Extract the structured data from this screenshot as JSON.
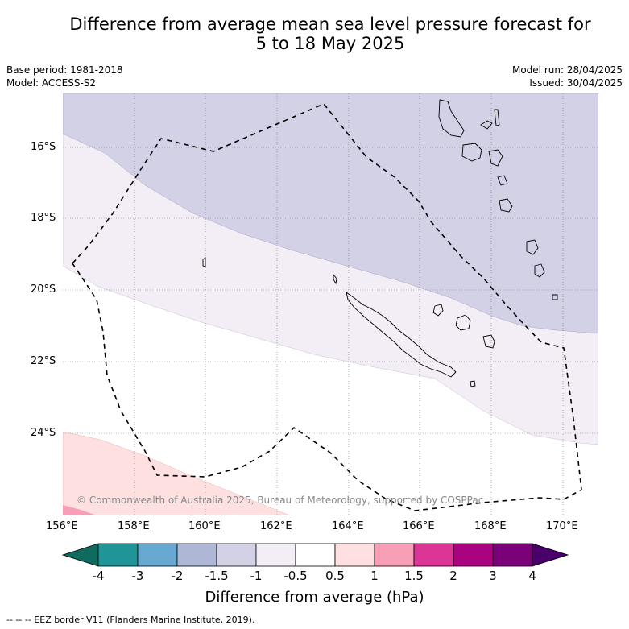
{
  "title_line1": "Difference from average mean sea level pressure forecast for",
  "title_line2": "5 to 18 May 2025",
  "meta_left": [
    "Base period: 1981-2018",
    "Model: ACCESS-S2"
  ],
  "meta_right": [
    "Model run: 28/04/2025",
    "Issued: 30/04/2025"
  ],
  "lat_labels": [
    "16°S",
    "18°S",
    "20°S",
    "22°S",
    "24°S"
  ],
  "lon_labels": [
    "156°E",
    "158°E",
    "160°E",
    "162°E",
    "164°E",
    "166°E",
    "168°E",
    "170°E"
  ],
  "credit": "© Commonwealth of Australia 2025, Bureau of Meteorology, supported by COSPPac",
  "colorbar": {
    "title": "Difference from average (hPa)",
    "ticks": [
      "-4",
      "-3",
      "-2",
      "-1.5",
      "-1",
      "-0.5",
      "0.5",
      "1",
      "1.5",
      "2",
      "3",
      "4"
    ],
    "colors": [
      "#0f6b5e",
      "#1f9598",
      "#67a9d0",
      "#aeb8d6",
      "#d2d1e6",
      "#f3edf5",
      "#ffffff",
      "#fde0df",
      "#f79fb7",
      "#dc3596",
      "#ab027f",
      "#7a0177",
      "#49006a"
    ]
  },
  "footnote": "--  --  -- EEZ border V11 (Flanders Marine Institute, 2019)."
}
